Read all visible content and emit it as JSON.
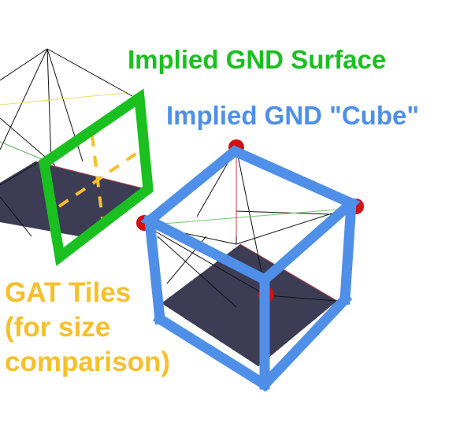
{
  "labels": {
    "surface": "Implied GND Surface",
    "cube": "Implied GND \"Cube\"",
    "gat_line1": "GAT Tiles",
    "gat_line2": "(for size",
    "gat_line3": "comparison)"
  },
  "colors": {
    "green": "#19c01f",
    "blue": "#4f8fe8",
    "orange": "#f6bf2c",
    "tile": "#3c3c55",
    "node": "#d21010",
    "wire": "#111111",
    "background": "#ffffff"
  }
}
